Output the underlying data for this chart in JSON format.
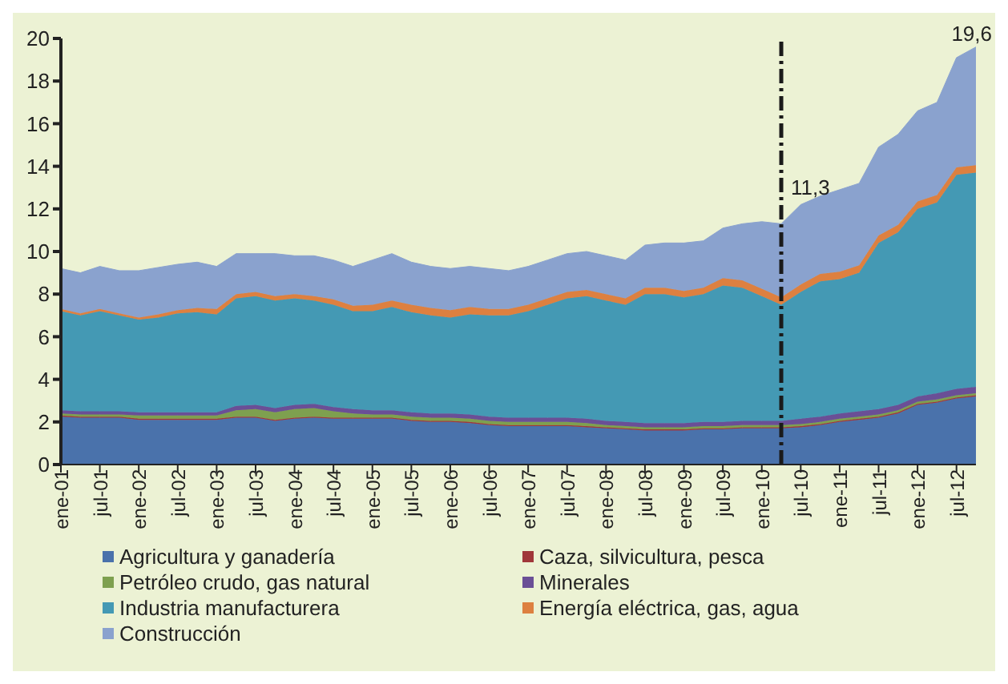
{
  "chart_data": {
    "type": "area",
    "stacked": true,
    "x": [
      "2001-01",
      "2001-04",
      "2001-07",
      "2001-10",
      "2002-01",
      "2002-04",
      "2002-07",
      "2002-10",
      "2003-01",
      "2003-04",
      "2003-07",
      "2003-10",
      "2004-01",
      "2004-04",
      "2004-07",
      "2004-10",
      "2005-01",
      "2005-04",
      "2005-07",
      "2005-10",
      "2006-01",
      "2006-04",
      "2006-07",
      "2006-10",
      "2007-01",
      "2007-04",
      "2007-07",
      "2007-10",
      "2008-01",
      "2008-04",
      "2008-07",
      "2008-10",
      "2009-01",
      "2009-04",
      "2009-07",
      "2009-10",
      "2010-01",
      "2010-04",
      "2010-07",
      "2010-10",
      "2011-01",
      "2011-04",
      "2011-07",
      "2011-10",
      "2012-01",
      "2012-04",
      "2012-07",
      "2012-10"
    ],
    "series": [
      {
        "name": "Agricultura y ganadería",
        "color": "#4a72ab",
        "values": [
          2.25,
          2.2,
          2.2,
          2.2,
          2.1,
          2.1,
          2.1,
          2.1,
          2.1,
          2.2,
          2.2,
          2.05,
          2.15,
          2.2,
          2.15,
          2.15,
          2.15,
          2.15,
          2.05,
          2.0,
          2.0,
          1.95,
          1.85,
          1.8,
          1.8,
          1.8,
          1.8,
          1.75,
          1.7,
          1.65,
          1.6,
          1.6,
          1.6,
          1.65,
          1.65,
          1.7,
          1.7,
          1.7,
          1.75,
          1.85,
          2.0,
          2.1,
          2.2,
          2.4,
          2.8,
          2.9,
          3.1,
          3.2
        ]
      },
      {
        "name": "Caza, silvicultura, pesca",
        "color": "#a0373a",
        "values": [
          0.05,
          0.05,
          0.05,
          0.05,
          0.05,
          0.05,
          0.05,
          0.05,
          0.05,
          0.05,
          0.05,
          0.05,
          0.05,
          0.05,
          0.05,
          0.05,
          0.05,
          0.05,
          0.05,
          0.05,
          0.05,
          0.05,
          0.05,
          0.05,
          0.05,
          0.05,
          0.05,
          0.05,
          0.05,
          0.05,
          0.05,
          0.05,
          0.05,
          0.05,
          0.05,
          0.05,
          0.05,
          0.05,
          0.05,
          0.05,
          0.05,
          0.05,
          0.05,
          0.05,
          0.05,
          0.05,
          0.05,
          0.05
        ]
      },
      {
        "name": "Petróleo crudo, gas natural",
        "color": "#7ea04f",
        "values": [
          0.1,
          0.1,
          0.1,
          0.1,
          0.15,
          0.15,
          0.15,
          0.15,
          0.15,
          0.3,
          0.35,
          0.35,
          0.4,
          0.4,
          0.3,
          0.2,
          0.15,
          0.15,
          0.15,
          0.15,
          0.15,
          0.15,
          0.15,
          0.15,
          0.15,
          0.15,
          0.15,
          0.15,
          0.1,
          0.1,
          0.1,
          0.1,
          0.1,
          0.1,
          0.1,
          0.1,
          0.1,
          0.1,
          0.1,
          0.1,
          0.1,
          0.1,
          0.1,
          0.1,
          0.1,
          0.1,
          0.1,
          0.1
        ]
      },
      {
        "name": "Minerales",
        "color": "#6a4f96",
        "values": [
          0.15,
          0.15,
          0.15,
          0.15,
          0.15,
          0.15,
          0.15,
          0.15,
          0.15,
          0.2,
          0.2,
          0.2,
          0.2,
          0.2,
          0.2,
          0.2,
          0.2,
          0.2,
          0.2,
          0.2,
          0.2,
          0.2,
          0.2,
          0.2,
          0.2,
          0.2,
          0.2,
          0.2,
          0.2,
          0.2,
          0.2,
          0.2,
          0.2,
          0.2,
          0.2,
          0.2,
          0.2,
          0.2,
          0.25,
          0.25,
          0.25,
          0.25,
          0.25,
          0.25,
          0.25,
          0.3,
          0.3,
          0.3
        ]
      },
      {
        "name": "Industria manufacturera",
        "color": "#4499b4",
        "values": [
          4.65,
          4.5,
          4.7,
          4.5,
          4.35,
          4.45,
          4.65,
          4.7,
          4.6,
          5.05,
          5.1,
          5.05,
          5.0,
          4.85,
          4.8,
          4.6,
          4.65,
          4.85,
          4.7,
          4.6,
          4.5,
          4.7,
          4.75,
          4.8,
          5.0,
          5.3,
          5.6,
          5.75,
          5.65,
          5.5,
          6.05,
          6.05,
          5.9,
          6.0,
          6.4,
          6.25,
          5.85,
          5.45,
          5.95,
          6.35,
          6.3,
          6.5,
          7.8,
          8.1,
          8.8,
          8.95,
          10.05,
          10.05
        ]
      },
      {
        "name": "Energía eléctrica, gas, agua",
        "color": "#dd8040",
        "values": [
          0.1,
          0.1,
          0.1,
          0.1,
          0.1,
          0.15,
          0.15,
          0.2,
          0.25,
          0.2,
          0.2,
          0.2,
          0.2,
          0.2,
          0.25,
          0.25,
          0.3,
          0.3,
          0.35,
          0.35,
          0.35,
          0.35,
          0.3,
          0.3,
          0.3,
          0.3,
          0.3,
          0.3,
          0.3,
          0.3,
          0.3,
          0.3,
          0.3,
          0.3,
          0.35,
          0.35,
          0.35,
          0.35,
          0.35,
          0.35,
          0.35,
          0.35,
          0.35,
          0.35,
          0.35,
          0.35,
          0.35,
          0.35
        ]
      },
      {
        "name": "Construcción",
        "color": "#8aa2ce",
        "values": [
          1.9,
          1.9,
          2.0,
          2.0,
          2.2,
          2.2,
          2.15,
          2.15,
          2.0,
          1.9,
          1.8,
          2.0,
          1.8,
          1.9,
          1.85,
          1.85,
          2.1,
          2.2,
          2.0,
          1.95,
          1.95,
          1.9,
          1.9,
          1.8,
          1.8,
          1.8,
          1.8,
          1.8,
          1.8,
          1.8,
          2.0,
          2.1,
          2.25,
          2.2,
          2.35,
          2.65,
          3.15,
          3.45,
          3.75,
          3.65,
          3.85,
          3.85,
          4.15,
          4.25,
          4.25,
          4.35,
          5.15,
          5.55
        ]
      }
    ],
    "xlim": [
      "2001-01",
      "2012-10"
    ],
    "xticks": [
      {
        "value": "2001-01",
        "label": "ene-01"
      },
      {
        "value": "2001-07",
        "label": "jul-01"
      },
      {
        "value": "2002-01",
        "label": "ene-02"
      },
      {
        "value": "2002-07",
        "label": "jul-02"
      },
      {
        "value": "2003-01",
        "label": "ene-03"
      },
      {
        "value": "2003-07",
        "label": "jul-03"
      },
      {
        "value": "2004-01",
        "label": "ene-04"
      },
      {
        "value": "2004-07",
        "label": "jul-04"
      },
      {
        "value": "2005-01",
        "label": "ene-05"
      },
      {
        "value": "2005-07",
        "label": "jul-05"
      },
      {
        "value": "2006-01",
        "label": "ene-06"
      },
      {
        "value": "2006-07",
        "label": "jul-06"
      },
      {
        "value": "2007-01",
        "label": "ene-07"
      },
      {
        "value": "2007-07",
        "label": "jul-07"
      },
      {
        "value": "2008-01",
        "label": "ene-08"
      },
      {
        "value": "2008-07",
        "label": "jul-08"
      },
      {
        "value": "2009-01",
        "label": "ene-09"
      },
      {
        "value": "2009-07",
        "label": "jul-09"
      },
      {
        "value": "2010-01",
        "label": "ene-10"
      },
      {
        "value": "2010-07",
        "label": "jul-10"
      },
      {
        "value": "2011-01",
        "label": "ene-11"
      },
      {
        "value": "2011-07",
        "label": "jul-11"
      },
      {
        "value": "2012-01",
        "label": "ene-12"
      },
      {
        "value": "2012-07",
        "label": "jul-12"
      }
    ],
    "ylim": [
      0,
      20
    ],
    "yticks": [
      0,
      2,
      4,
      6,
      8,
      10,
      12,
      14,
      16,
      18,
      20
    ],
    "grid": false,
    "legend": "bottom",
    "ref_lines": [
      {
        "axis": "x",
        "value": "2010-04",
        "color": "#1a1a1a",
        "line_style": "dashed"
      }
    ],
    "annotations": [
      {
        "text": "11,3",
        "x": "2010-04",
        "y": 11.3
      },
      {
        "text": "19,6",
        "x": "2012-10",
        "y": 19.6
      }
    ]
  }
}
